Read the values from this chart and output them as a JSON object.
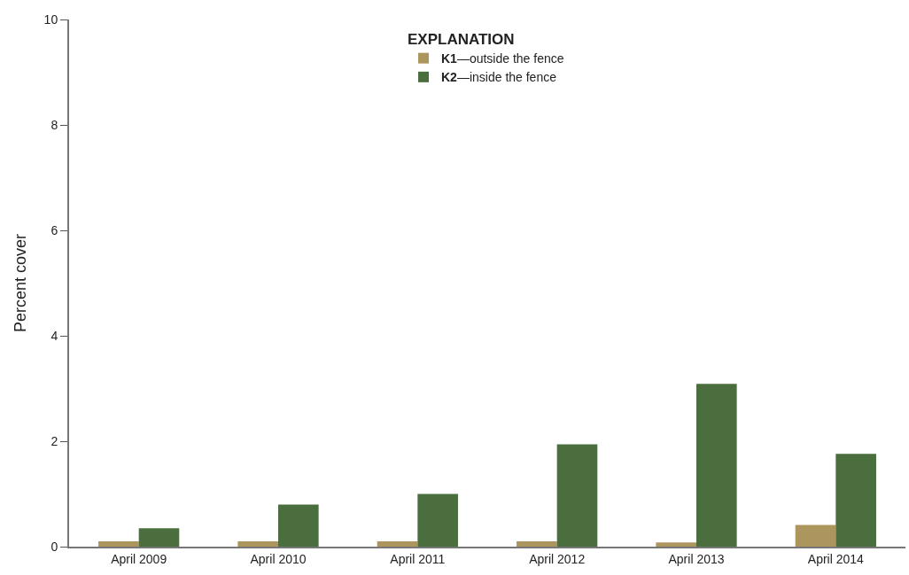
{
  "chart_data": {
    "type": "bar",
    "ylabel": "Percent cover",
    "legend_title": "EXPLANATION",
    "categories": [
      "April 2009",
      "April 2010",
      "April 2011",
      "April 2012",
      "April 2013",
      "April 2014"
    ],
    "series": [
      {
        "name": "K1—outside the fence",
        "color": "#ad955e",
        "values": [
          0.1,
          0.1,
          0.1,
          0.1,
          0.08,
          0.41
        ]
      },
      {
        "name": "K2—inside the fence",
        "color": "#4a6e3d",
        "values": [
          0.35,
          0.8,
          1.0,
          1.94,
          3.09,
          1.76
        ]
      }
    ],
    "ylim": [
      0,
      10
    ],
    "yticks": [
      0,
      2,
      4,
      6,
      8,
      10
    ],
    "legend": "top"
  }
}
